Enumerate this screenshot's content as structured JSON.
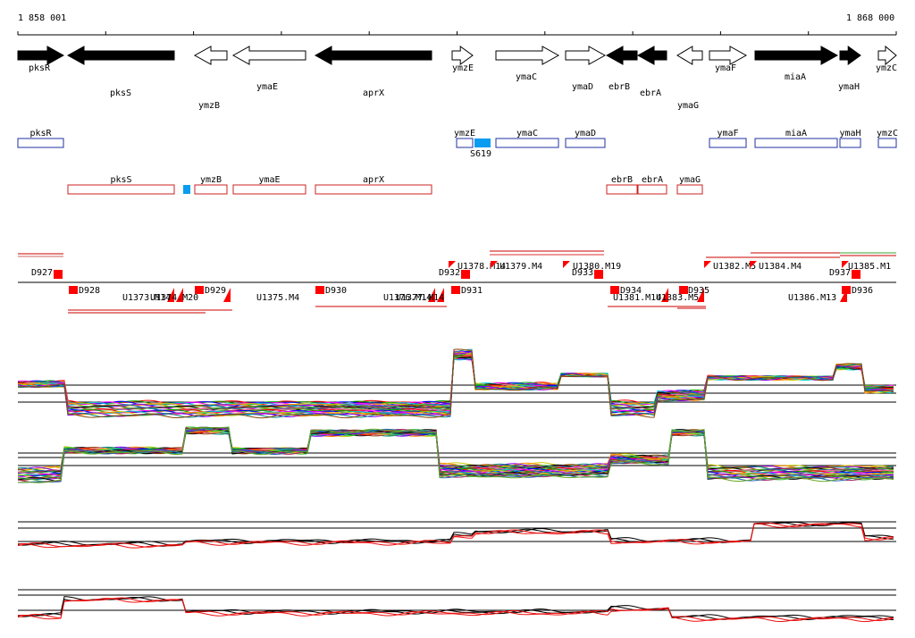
{
  "ruler": {
    "start_label": "1 858 001",
    "end_label": "1 868 000"
  },
  "colors": {
    "plus_box": "#2030a0",
    "minus_box": "#cc2020",
    "hit": "#0a9cf0",
    "marker": "#ff0000",
    "black": "#000000",
    "red_trace": "#ee1010"
  },
  "genes": [
    {
      "name": "pksR",
      "filled": true,
      "dir": "right"
    },
    {
      "name": "pksS",
      "filled": true,
      "dir": "left"
    },
    {
      "name": "ymzB",
      "filled": false,
      "dir": "left"
    },
    {
      "name": "ymaE",
      "filled": false,
      "dir": "left"
    },
    {
      "name": "aprX",
      "filled": true,
      "dir": "left"
    },
    {
      "name": "ymzE",
      "filled": false,
      "dir": "right"
    },
    {
      "name": "ymaC",
      "filled": false,
      "dir": "right"
    },
    {
      "name": "ymaD",
      "filled": false,
      "dir": "right"
    },
    {
      "name": "ebrB",
      "filled": true,
      "dir": "left"
    },
    {
      "name": "ebrA",
      "filled": true,
      "dir": "left"
    },
    {
      "name": "ymaG",
      "filled": false,
      "dir": "left"
    },
    {
      "name": "ymaF",
      "filled": false,
      "dir": "right"
    },
    {
      "name": "miaA",
      "filled": true,
      "dir": "right"
    },
    {
      "name": "ymaH",
      "filled": true,
      "dir": "right"
    },
    {
      "name": "ymzC",
      "filled": false,
      "dir": "right"
    }
  ],
  "plus_strand_boxes": [
    "pksR",
    "ymzE",
    "ymaC",
    "ymaD",
    "ymaF",
    "miaA",
    "ymaH",
    "ymzC"
  ],
  "minus_strand_boxes": [
    "pksS",
    "ymzB",
    "ymaE",
    "aprX",
    "ebrB",
    "ebrA",
    "ymaG"
  ],
  "hit_label": "S619",
  "segments_upper": [
    "D927",
    "D932",
    "U1378.M14",
    "U1379.M4",
    "U1380.M19",
    "D933",
    "U1382.M5",
    "U1384.M4",
    "D937",
    "U1385.M1"
  ],
  "segments_lower": [
    "D928",
    "U1373.M14",
    "U1374.M20",
    "D929",
    "U1375.M4",
    "D930",
    "U1376.M14",
    "U1377.M14",
    "D931",
    "D934",
    "U1381.M14",
    "U1383.M5",
    "D935",
    "U1386.M13",
    "D936"
  ]
}
